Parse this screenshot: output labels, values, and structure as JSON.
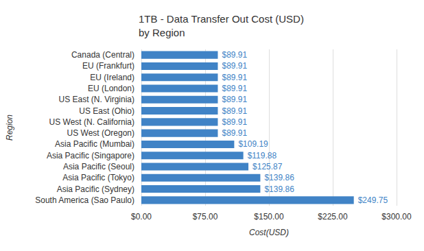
{
  "chart_data": {
    "type": "bar",
    "title": "1TB - Data Transfer Out Cost (USD) by Region",
    "x_label": "Cost(USD)",
    "y_label": "Region",
    "orientation": "horizontal",
    "categories": [
      "Canada (Central)",
      "EU (Frankfurt)",
      "EU (Ireland)",
      "EU (London)",
      "US East (N. Virginia)",
      "US East (Ohio)",
      "US West (N. California)",
      "US West (Oregon)",
      "Asia Pacific (Mumbai)",
      "Asia Pacific (Singapore)",
      "Asia Pacific (Seoul)",
      "Asia Pacific (Tokyo)",
      "Asia Pacific (Sydney)",
      "South America (Sao Paulo)"
    ],
    "values": [
      89.91,
      89.91,
      89.91,
      89.91,
      89.91,
      89.91,
      89.91,
      89.91,
      109.19,
      119.88,
      125.87,
      139.86,
      139.86,
      249.75
    ],
    "value_labels": [
      "$89.91",
      "$89.91",
      "$89.91",
      "$89.91",
      "$89.91",
      "$89.91",
      "$89.91",
      "$89.91",
      "$109.19",
      "$119.88",
      "$125.87",
      "$139.86",
      "$139.86",
      "$249.75"
    ],
    "color": "#4083c6",
    "xlim": [
      0,
      300
    ],
    "xticks": [
      {
        "value": 0,
        "label": "$0.00"
      },
      {
        "value": 75,
        "label": "$75.00"
      },
      {
        "value": 150,
        "label": "$150.00"
      },
      {
        "value": 225,
        "label": "$225.00"
      },
      {
        "value": 300,
        "label": "$300.00"
      }
    ],
    "grid": true,
    "data_labels": true
  }
}
